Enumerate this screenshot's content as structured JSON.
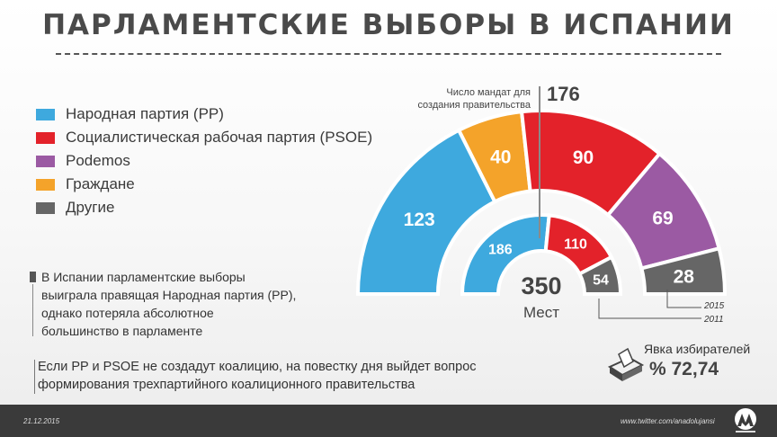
{
  "title": "ПАРЛАМЕНТСКИЕ ВЫБОРЫ В ИСПАНИИ",
  "legend": [
    {
      "label": "Народная партия (PP)",
      "color": "#3ea9de"
    },
    {
      "label": "Социалистическая рабочая партия (PSOE)",
      "color": "#e3222a"
    },
    {
      "label": "Podemos",
      "color": "#9b5aa3"
    },
    {
      "label": "Граждане",
      "color": "#f4a32a"
    },
    {
      "label": "Другие",
      "color": "#666666"
    }
  ],
  "majority": {
    "label_line1": "Число мандат для",
    "label_line2": "создания правительства",
    "value": "176"
  },
  "total": {
    "value": "350",
    "label": "Мест"
  },
  "year_labels": {
    "outer": "2015",
    "inner": "2011"
  },
  "notes": {
    "note1": [
      "В Испании парламентские выборы",
      "выиграла правящая Народная партия (PP),",
      "однако потеряла абсолютное",
      "большинство в парламенте"
    ],
    "note2": [
      "Если PP и PSOE не создадут коалицию, на повестку дня выйдет вопрос",
      "формирования трехпартийного коалиционного правительства"
    ]
  },
  "turnout": {
    "label": "Явка избирателей",
    "value": "% 72,74"
  },
  "footer": {
    "date": "21.12.2015",
    "url": "www.twitter.com/anadolujansi"
  },
  "chart_data": [
    {
      "type": "pie",
      "title": "2015",
      "series": [
        {
          "name": "Народная партия (PP)",
          "value": 123,
          "color": "#3ea9de"
        },
        {
          "name": "Граждане",
          "value": 40,
          "color": "#f4a32a"
        },
        {
          "name": "Социалистическая рабочая партия (PSOE)",
          "value": 90,
          "color": "#e3222a"
        },
        {
          "name": "Podemos",
          "value": 69,
          "color": "#9b5aa3"
        },
        {
          "name": "Другие",
          "value": 28,
          "color": "#666666"
        }
      ]
    },
    {
      "type": "pie",
      "title": "2011",
      "series": [
        {
          "name": "Народная партия (PP)",
          "value": 186,
          "color": "#3ea9de"
        },
        {
          "name": "Социалистическая рабочая партия (PSOE)",
          "value": 110,
          "color": "#e3222a"
        },
        {
          "name": "Другие",
          "value": 54,
          "color": "#666666"
        }
      ]
    }
  ]
}
